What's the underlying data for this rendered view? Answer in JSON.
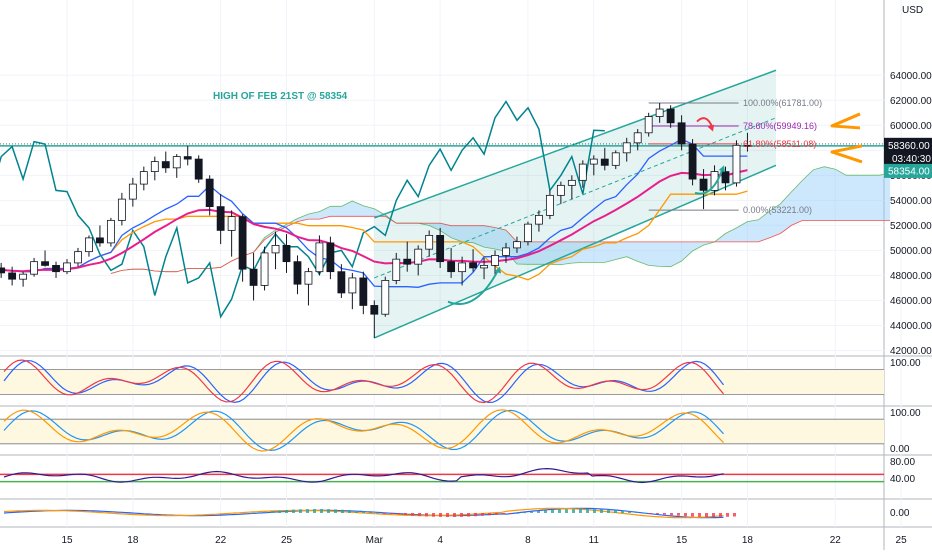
{
  "chart_data": {
    "type": "candlestick",
    "currency_label": "USD",
    "price_axis": {
      "ticks": [
        "64000.00",
        "62000.00",
        "60000.00",
        "58000.00",
        "56000.00",
        "54000.00",
        "52000.00",
        "50000.00",
        "48000.00",
        "46000.00",
        "44000.00",
        "42000.00"
      ],
      "ylim": [
        40600,
        65300
      ]
    },
    "last_price": {
      "value": "58360.00",
      "countdown": "03:40:30",
      "color": "#26a69a"
    },
    "level_tag": {
      "value": "58354.00",
      "color": "#26a69a"
    },
    "x_axis": {
      "labels": [
        {
          "text": "15",
          "day": 0
        },
        {
          "text": "18",
          "day": 3
        },
        {
          "text": "22",
          "day": 7
        },
        {
          "text": "25",
          "day": 10
        },
        {
          "text": "Mar",
          "day": 14
        },
        {
          "text": "4",
          "day": 17
        },
        {
          "text": "8",
          "day": 21
        },
        {
          "text": "11",
          "day": 24
        },
        {
          "text": "15",
          "day": 28
        },
        {
          "text": "18",
          "day": 31
        },
        {
          "text": "22",
          "day": 35
        },
        {
          "text": "25",
          "day": 38
        }
      ]
    },
    "horizontal_line": {
      "label": "HIGH OF FEB 21ST @ 58354",
      "price": 58354,
      "color": "#26a69a"
    },
    "fibonacci": {
      "levels": [
        {
          "label": "100.00%(61781.00)",
          "price": 61781,
          "color": "#787b86"
        },
        {
          "label": "78.60%(59949.16)",
          "price": 59949.16,
          "color": "#9c27b0"
        },
        {
          "label": "61.80%(58511.08)",
          "price": 58511.08,
          "color": "#f23645"
        },
        {
          "label": "0.00%(53221.00)",
          "price": 53221,
          "color": "#787b86"
        }
      ]
    },
    "channel": {
      "lower": [
        [
          14.0,
          43000
        ],
        [
          32.3,
          56800
        ]
      ],
      "upper": [
        [
          14.0,
          52600
        ],
        [
          32.3,
          64400
        ]
      ],
      "color": "#26a69a"
    },
    "candles": [
      [
        -4.5,
        48000,
        48800,
        47500,
        48400
      ],
      [
        -4.0,
        48400,
        49300,
        48100,
        48900
      ],
      [
        -3.5,
        48900,
        49500,
        48200,
        48600
      ],
      [
        -3.0,
        48600,
        49000,
        47800,
        48200
      ],
      [
        -2.5,
        48200,
        48700,
        47200,
        47700
      ],
      [
        -2.0,
        47700,
        48300,
        47100,
        48100
      ],
      [
        -1.5,
        48100,
        49400,
        47900,
        49100
      ],
      [
        -1.0,
        49100,
        50000,
        48700,
        48800
      ],
      [
        -0.5,
        48800,
        49100,
        47800,
        48300
      ],
      [
        0.0,
        48300,
        49300,
        48100,
        49000
      ],
      [
        0.5,
        49000,
        50200,
        48700,
        49900
      ],
      [
        1.0,
        49900,
        51200,
        49500,
        51000
      ],
      [
        1.5,
        51000,
        52000,
        50300,
        50600
      ],
      [
        2.0,
        50600,
        52600,
        50300,
        52400
      ],
      [
        2.5,
        52400,
        54600,
        52000,
        54100
      ],
      [
        3.0,
        54100,
        55800,
        53500,
        55300
      ],
      [
        3.5,
        55300,
        56700,
        54800,
        56300
      ],
      [
        4.0,
        56300,
        57500,
        55600,
        57100
      ],
      [
        4.5,
        57100,
        57900,
        56200,
        56600
      ],
      [
        5.0,
        56600,
        57700,
        55800,
        57500
      ],
      [
        5.5,
        57500,
        58354,
        56800,
        57300
      ],
      [
        6.0,
        57300,
        57600,
        55400,
        55700
      ],
      [
        6.5,
        55700,
        56000,
        52800,
        53500
      ],
      [
        7.0,
        53500,
        54500,
        50500,
        51600
      ],
      [
        7.5,
        51600,
        53200,
        49500,
        52700
      ],
      [
        8.0,
        52700,
        52900,
        47500,
        48500
      ],
      [
        8.5,
        48500,
        49800,
        46000,
        47200
      ],
      [
        9.0,
        47200,
        50300,
        46800,
        49800
      ],
      [
        9.5,
        49800,
        51500,
        48500,
        50400
      ],
      [
        10.0,
        50400,
        51300,
        48200,
        49100
      ],
      [
        10.5,
        49100,
        49600,
        46500,
        47300
      ],
      [
        11.0,
        47300,
        48600,
        45600,
        48300
      ],
      [
        11.5,
        48300,
        51200,
        48000,
        50600
      ],
      [
        12.0,
        50600,
        51100,
        47700,
        48300
      ],
      [
        12.5,
        48300,
        48900,
        46200,
        46600
      ],
      [
        13.0,
        46600,
        48200,
        45300,
        47800
      ],
      [
        13.5,
        47800,
        48300,
        44900,
        45600
      ],
      [
        14.0,
        45600,
        46000,
        43000,
        44900
      ],
      [
        14.5,
        44900,
        47900,
        44700,
        47600
      ],
      [
        15.0,
        47600,
        49800,
        47300,
        49300
      ],
      [
        15.5,
        49300,
        50700,
        48300,
        48900
      ],
      [
        16.0,
        48900,
        50400,
        48000,
        50100
      ],
      [
        16.5,
        50100,
        51600,
        49500,
        51200
      ],
      [
        17.0,
        51200,
        51800,
        48600,
        49100
      ],
      [
        17.5,
        49100,
        50200,
        47800,
        48300
      ],
      [
        18.0,
        48300,
        49500,
        47200,
        49000
      ],
      [
        18.5,
        49000,
        50100,
        48300,
        48600
      ],
      [
        19.0,
        48600,
        49400,
        47700,
        48800
      ],
      [
        19.5,
        48800,
        50000,
        48000,
        49600
      ],
      [
        20.0,
        49600,
        50600,
        49000,
        50200
      ],
      [
        20.5,
        50200,
        51100,
        49800,
        50700
      ],
      [
        21.0,
        50700,
        52300,
        50400,
        52100
      ],
      [
        21.5,
        52100,
        53200,
        51500,
        52800
      ],
      [
        22.0,
        52800,
        54800,
        52500,
        54400
      ],
      [
        22.5,
        54400,
        55500,
        53700,
        55200
      ],
      [
        23.0,
        55200,
        56000,
        54100,
        55600
      ],
      [
        23.5,
        55600,
        57200,
        55000,
        56900
      ],
      [
        24.0,
        56900,
        57600,
        56000,
        57300
      ],
      [
        24.5,
        57300,
        58200,
        56400,
        56800
      ],
      [
        25.0,
        56800,
        58000,
        56500,
        57800
      ],
      [
        25.5,
        57800,
        59000,
        57100,
        58600
      ],
      [
        26.0,
        58600,
        59700,
        58000,
        59400
      ],
      [
        26.5,
        59400,
        61000,
        59100,
        60700
      ],
      [
        27.0,
        60700,
        61781,
        60200,
        61300
      ],
      [
        27.5,
        61300,
        61600,
        59800,
        60200
      ],
      [
        28.0,
        60200,
        60800,
        58000,
        58500
      ],
      [
        28.5,
        58500,
        58900,
        55200,
        55700
      ],
      [
        29.0,
        55700,
        56500,
        53300,
        54800
      ],
      [
        29.5,
        54800,
        56800,
        54400,
        56300
      ],
      [
        30.0,
        56300,
        56700,
        54800,
        55400
      ],
      [
        30.5,
        55400,
        58800,
        55100,
        58400
      ],
      [
        31.0,
        58400,
        59400,
        57900,
        58360
      ]
    ],
    "ichimoku": {
      "tenkan_color": "#2962ff",
      "kijun_color": "#ff9800",
      "chikou_color": "#00838f",
      "span_a_color": "#66bb6a",
      "span_b_color": "#ef5350",
      "kumo_color": "#90caf9"
    },
    "moving_average_color": "#e91e8c",
    "oscillators": [
      {
        "name": "stoch-rsi",
        "top_label": "100.00",
        "upper": 80,
        "lower": 20,
        "fill": "#fff8e1",
        "line_colors": [
          "#2962ff",
          "#f23645"
        ]
      },
      {
        "name": "stochastic",
        "top_label": "100.00",
        "bottom_label": "0.00",
        "upper": 80,
        "lower": 20,
        "fill": "#fff8e1",
        "line_colors": [
          "#2196f3",
          "#ff9800"
        ]
      },
      {
        "name": "rsi",
        "top_label": "80.00",
        "mid_label": "40.00",
        "upper": 60,
        "lower": 40,
        "line_colors": [
          "#311b92"
        ]
      },
      {
        "name": "macd",
        "zero_label": "0.00",
        "line_colors": [
          "#2962ff",
          "#ff9800"
        ]
      }
    ]
  }
}
